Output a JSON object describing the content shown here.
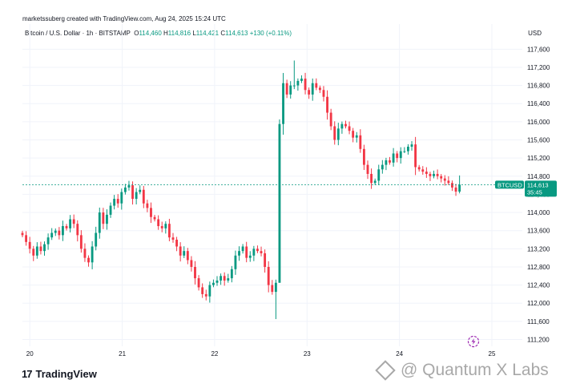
{
  "header": {
    "created_by": "marketssuberg created with TradingView.com, Aug 24, 2025 15:24 UTC"
  },
  "legend": {
    "symbol": "Bitcoin / U.S. Dollar · 1h · BITSTAMP",
    "o_label": "O",
    "o_value": "114,460",
    "h_label": "H",
    "h_value": "114,816",
    "l_label": "L",
    "l_value": "114,421",
    "c_label": "C",
    "c_value": "114,613",
    "change": "+130 (+0.11%)"
  },
  "currency": "USD",
  "price_tag": {
    "symbol": "BTCUSD",
    "price": "114,613",
    "countdown": "35:45"
  },
  "branding": {
    "logo_text": "TradingView",
    "watermark": "@ Quantum X Labs"
  },
  "colors": {
    "up": "#089981",
    "down": "#f23645",
    "grid": "#f0f3fa",
    "price_line": "#089981"
  },
  "chart_data": {
    "type": "candlestick",
    "symbol": "BTCUSD",
    "y_ticks": [
      111200,
      111600,
      112000,
      112400,
      112800,
      113200,
      113600,
      114000,
      114400,
      114800,
      115200,
      115600,
      116000,
      116400,
      116800,
      117200,
      117600
    ],
    "y_tick_labels": [
      "111,200",
      "111,600",
      "112,000",
      "112,400",
      "112,800",
      "113,200",
      "113,600",
      "114,000",
      "114,400",
      "114,800",
      "115,200",
      "115,600",
      "116,000",
      "116,400",
      "116,800",
      "117,200",
      "117,600"
    ],
    "ylim": [
      111050,
      117800
    ],
    "x_ticks": [
      20,
      21,
      22,
      23,
      24,
      25
    ],
    "x_tick_labels": [
      "20",
      "21",
      "22",
      "23",
      "24",
      "25"
    ],
    "xlim": [
      19.92,
      25.0
    ],
    "candles_close": [
      113500,
      113350,
      113200,
      113050,
      113250,
      113150,
      113300,
      113450,
      113550,
      113600,
      113500,
      113700,
      113650,
      113850,
      113750,
      113500,
      113200,
      113000,
      112900,
      113250,
      113550,
      114000,
      113750,
      113950,
      114150,
      114300,
      114200,
      114450,
      114550,
      114600,
      114300,
      114450,
      114500,
      114200,
      114100,
      113900,
      113850,
      113700,
      113650,
      113750,
      113450,
      113400,
      113250,
      113050,
      113150,
      112950,
      112800,
      112550,
      112350,
      112200,
      112150,
      112400,
      112450,
      112500,
      112600,
      112500,
      112550,
      112750,
      113050,
      113150,
      113250,
      113000,
      113050,
      113200,
      113150,
      113100,
      112800,
      112400,
      112250,
      112450,
      115950,
      116850,
      116600,
      116800,
      116800,
      116900,
      116950,
      116700,
      116600,
      116850,
      116750,
      116700,
      116550,
      116200,
      115900,
      115600,
      115850,
      115950,
      115900,
      115800,
      115650,
      115700,
      115400,
      115050,
      114850,
      114650,
      114700,
      114950,
      115050,
      115150,
      115100,
      115300,
      115200,
      115350,
      115350,
      115450,
      115500,
      115000,
      114950,
      114900,
      114850,
      114800,
      114850,
      114800,
      114750,
      114700,
      114650,
      114550,
      114460,
      114613
    ],
    "candles_open_first": 113550,
    "last_candle": {
      "open": 114460,
      "high": 114816,
      "low": 114421,
      "close": 114613
    }
  }
}
